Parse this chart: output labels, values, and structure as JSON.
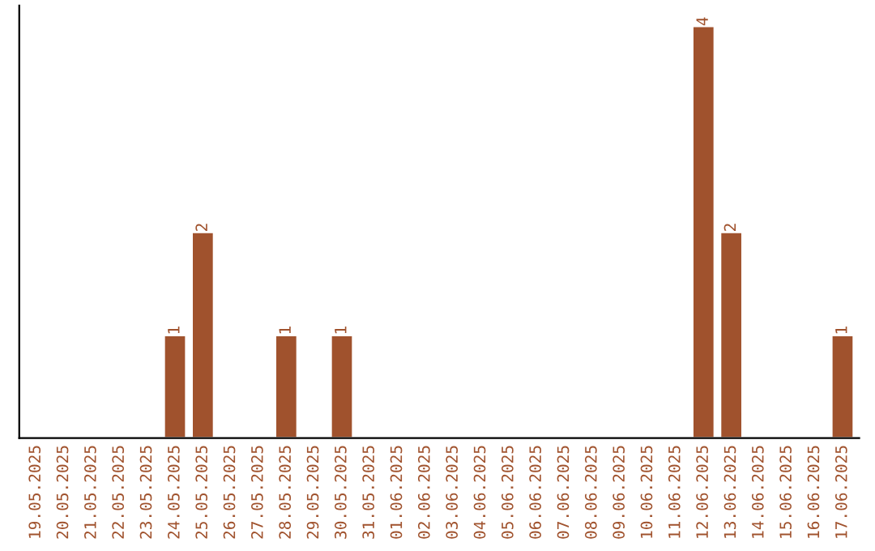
{
  "chart_data": {
    "type": "bar",
    "categories": [
      "19.05.2025",
      "20.05.2025",
      "21.05.2025",
      "22.05.2025",
      "23.05.2025",
      "24.05.2025",
      "25.05.2025",
      "26.05.2025",
      "27.05.2025",
      "28.05.2025",
      "29.05.2025",
      "30.05.2025",
      "31.05.2025",
      "01.06.2025",
      "02.06.2025",
      "03.06.2025",
      "04.06.2025",
      "05.06.2025",
      "06.06.2025",
      "07.06.2025",
      "08.06.2025",
      "09.06.2025",
      "10.06.2025",
      "11.06.2025",
      "12.06.2025",
      "13.06.2025",
      "14.06.2025",
      "15.06.2025",
      "16.06.2025",
      "17.06.2025"
    ],
    "values": [
      null,
      null,
      null,
      null,
      null,
      1,
      2,
      null,
      null,
      1,
      null,
      1,
      null,
      null,
      null,
      null,
      null,
      null,
      null,
      null,
      null,
      null,
      null,
      null,
      4,
      2,
      null,
      null,
      null,
      1
    ],
    "value_labels": [
      null,
      null,
      null,
      null,
      null,
      "1",
      "2",
      null,
      null,
      "1",
      null,
      "1",
      null,
      null,
      null,
      null,
      null,
      null,
      null,
      null,
      null,
      null,
      null,
      null,
      "4",
      "2",
      null,
      null,
      null,
      "1"
    ],
    "color": "#a0522d",
    "tick_labels": "x",
    "grid": false,
    "legend": false
  }
}
